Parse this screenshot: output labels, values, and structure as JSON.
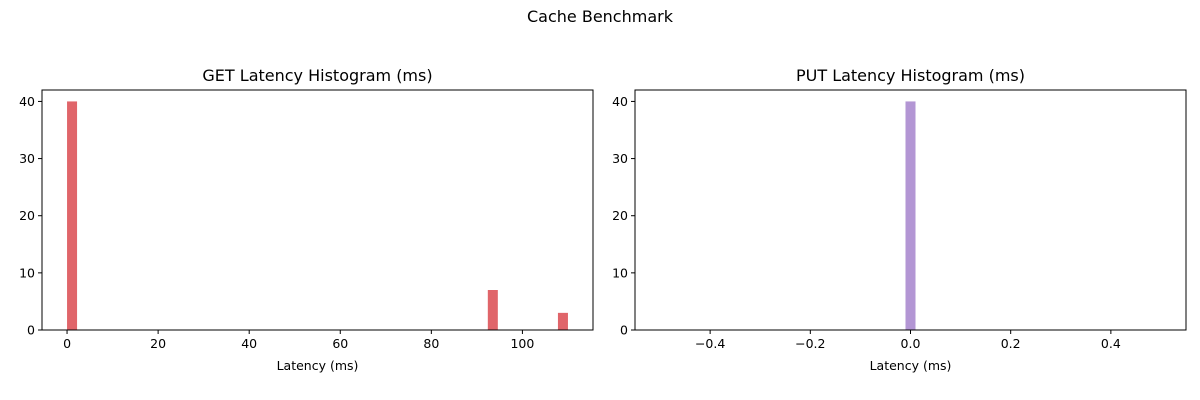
{
  "figure": {
    "suptitle": "Cache Benchmark"
  },
  "chart_data": [
    {
      "type": "bar",
      "subtype": "histogram",
      "title": "GET Latency Histogram (ms)",
      "xlabel": "Latency (ms)",
      "ylabel": "",
      "xlim": [
        -5.5,
        115.5
      ],
      "ylim": [
        0,
        42
      ],
      "xticks": [
        0,
        20,
        40,
        60,
        80,
        100
      ],
      "yticks": [
        0,
        10,
        20,
        30,
        40
      ],
      "color": "#e0656a",
      "bins": [
        {
          "x0": 0.0,
          "x1": 2.2,
          "count": 40
        },
        {
          "x0": 92.4,
          "x1": 94.6,
          "count": 7
        },
        {
          "x0": 107.8,
          "x1": 110.0,
          "count": 3
        }
      ],
      "grid": false,
      "legend": "none"
    },
    {
      "type": "bar",
      "subtype": "histogram",
      "title": "PUT Latency Histogram (ms)",
      "xlabel": "Latency (ms)",
      "ylabel": "",
      "xlim": [
        -0.55,
        0.55
      ],
      "ylim": [
        0,
        42
      ],
      "xticks": [
        -0.4,
        -0.2,
        0.0,
        0.2,
        0.4
      ],
      "xtick_labels": [
        "−0.4",
        "−0.2",
        "0.0",
        "0.2",
        "0.4"
      ],
      "yticks": [
        0,
        10,
        20,
        30,
        40
      ],
      "color": "#b396d4",
      "bins": [
        {
          "x0": -0.01,
          "x1": 0.01,
          "count": 40
        }
      ],
      "grid": false,
      "legend": "none"
    }
  ]
}
